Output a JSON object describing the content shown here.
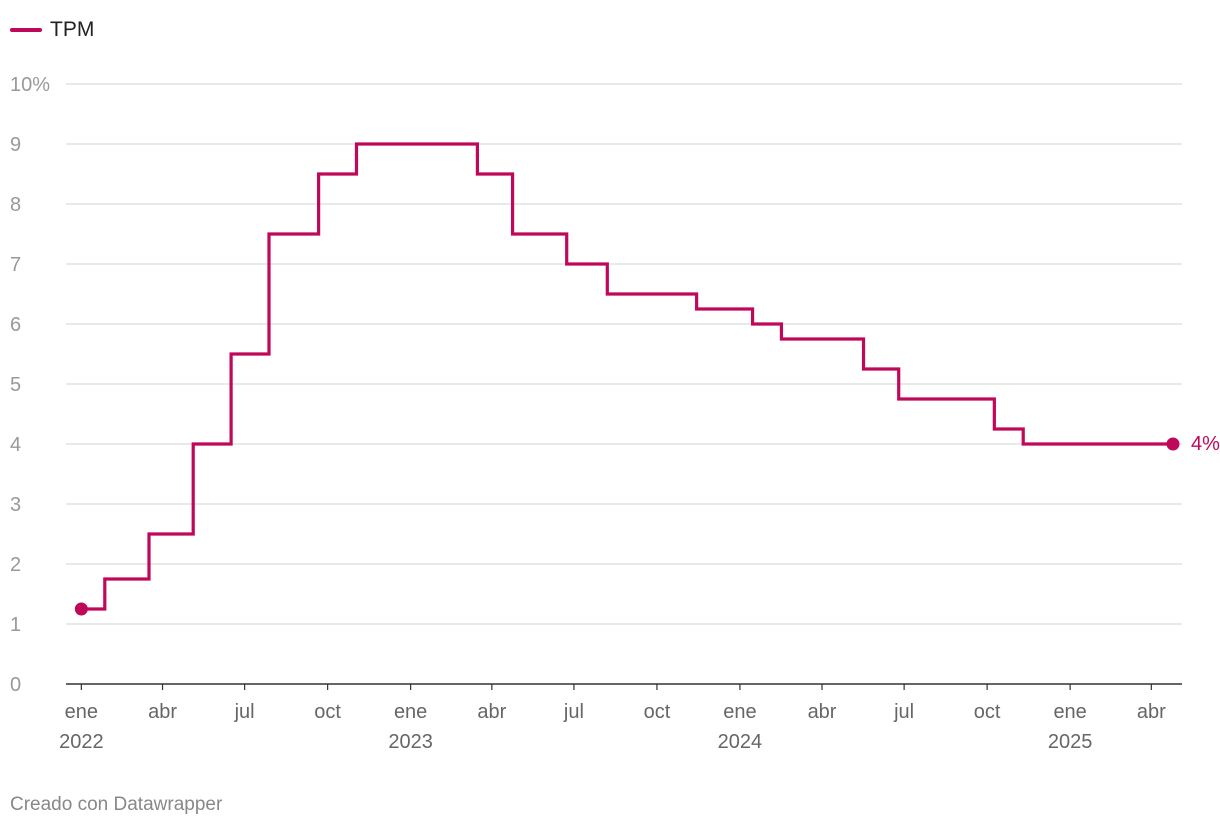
{
  "legend": {
    "label": "TPM",
    "color": "#c0085a"
  },
  "footer": "Creado con Datawrapper",
  "chart_data": {
    "type": "line",
    "step": true,
    "series": [
      {
        "name": "TPM",
        "color": "#c0085a",
        "points": [
          [
            "2022-01-01",
            1.25
          ],
          [
            "2022-01-27",
            1.75
          ],
          [
            "2022-03-17",
            2.5
          ],
          [
            "2022-05-05",
            4.0
          ],
          [
            "2022-06-16",
            5.5
          ],
          [
            "2022-07-28",
            7.5
          ],
          [
            "2022-09-21",
            8.5
          ],
          [
            "2022-11-02",
            9.0
          ],
          [
            "2023-03-16",
            8.5
          ],
          [
            "2023-04-24",
            7.5
          ],
          [
            "2023-06-23",
            7.0
          ],
          [
            "2023-08-07",
            6.5
          ],
          [
            "2023-11-14",
            6.25
          ],
          [
            "2024-01-15",
            6.0
          ],
          [
            "2024-02-16",
            5.75
          ],
          [
            "2024-05-17",
            5.25
          ],
          [
            "2024-06-25",
            4.75
          ],
          [
            "2024-10-09",
            4.25
          ],
          [
            "2024-11-10",
            4.0
          ],
          [
            "2025-04-25",
            4.0
          ]
        ]
      }
    ],
    "end_label": "4%",
    "xlim": [
      "2021-12-15",
      "2025-05-05"
    ],
    "ylim": [
      0,
      10
    ],
    "y_ticks": [
      {
        "value": 0,
        "label": "0"
      },
      {
        "value": 1,
        "label": "1"
      },
      {
        "value": 2,
        "label": "2"
      },
      {
        "value": 3,
        "label": "3"
      },
      {
        "value": 4,
        "label": "4"
      },
      {
        "value": 5,
        "label": "5"
      },
      {
        "value": 6,
        "label": "6"
      },
      {
        "value": 7,
        "label": "7"
      },
      {
        "value": 8,
        "label": "8"
      },
      {
        "value": 9,
        "label": "9"
      },
      {
        "value": 10,
        "label": "10%"
      }
    ],
    "x_ticks": [
      {
        "date": "2022-01-01",
        "label": "ene",
        "year": "2022"
      },
      {
        "date": "2022-04-01",
        "label": "abr"
      },
      {
        "date": "2022-07-01",
        "label": "jul"
      },
      {
        "date": "2022-10-01",
        "label": "oct"
      },
      {
        "date": "2023-01-01",
        "label": "ene",
        "year": "2023"
      },
      {
        "date": "2023-04-01",
        "label": "abr"
      },
      {
        "date": "2023-07-01",
        "label": "jul"
      },
      {
        "date": "2023-10-01",
        "label": "oct"
      },
      {
        "date": "2024-01-01",
        "label": "ene",
        "year": "2024"
      },
      {
        "date": "2024-04-01",
        "label": "abr"
      },
      {
        "date": "2024-07-01",
        "label": "jul"
      },
      {
        "date": "2024-10-01",
        "label": "oct"
      },
      {
        "date": "2025-01-01",
        "label": "ene",
        "year": "2025"
      },
      {
        "date": "2025-04-01",
        "label": "abr"
      }
    ],
    "grid": true,
    "legend_position": "top-left"
  }
}
